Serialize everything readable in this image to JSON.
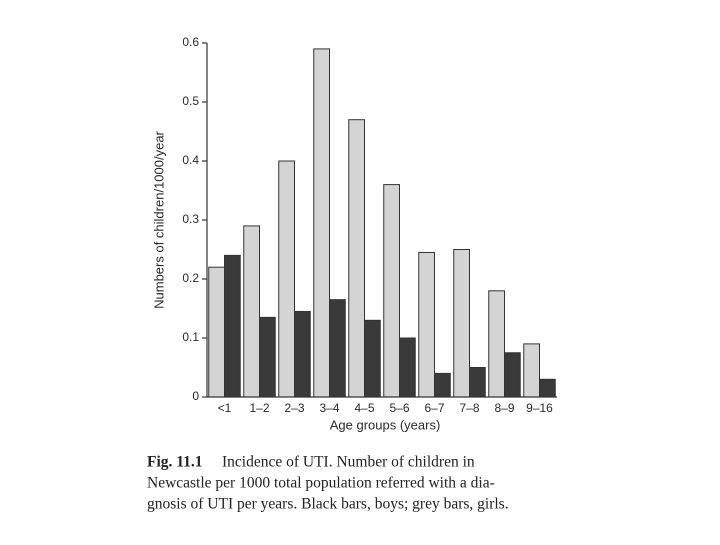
{
  "chart_data": {
    "type": "bar",
    "y_label": "Numbers of children/1000/year",
    "x_label": "Age groups (years)",
    "categories": [
      "<1",
      "1–2",
      "2–3",
      "3–4",
      "4–5",
      "5–6",
      "6–7",
      "7–8",
      "8–9",
      "9–16"
    ],
    "series": [
      {
        "color": "#d4d4d4",
        "values": [
          0.22,
          0.29,
          0.4,
          0.59,
          0.47,
          0.36,
          0.245,
          0.25,
          0.18,
          0.09
        ]
      },
      {
        "color": "#3a3a3a",
        "values": [
          0.24,
          0.135,
          0.145,
          0.165,
          0.13,
          0.1,
          0.04,
          0.05,
          0.075,
          0.03
        ]
      }
    ],
    "ylim": [
      0,
      0.6
    ],
    "yticks": [
      0,
      0.1,
      0.2,
      0.3,
      0.4,
      0.5,
      0.6
    ],
    "grid": false,
    "caption_label": "Fig. 11.1",
    "caption_lines": [
      "Incidence of UTI. Number of children in",
      "Newcastle per 1000 total population referred with a dia-",
      "gnosis of UTI per years. Black bars, boys; grey bars, girls."
    ]
  }
}
